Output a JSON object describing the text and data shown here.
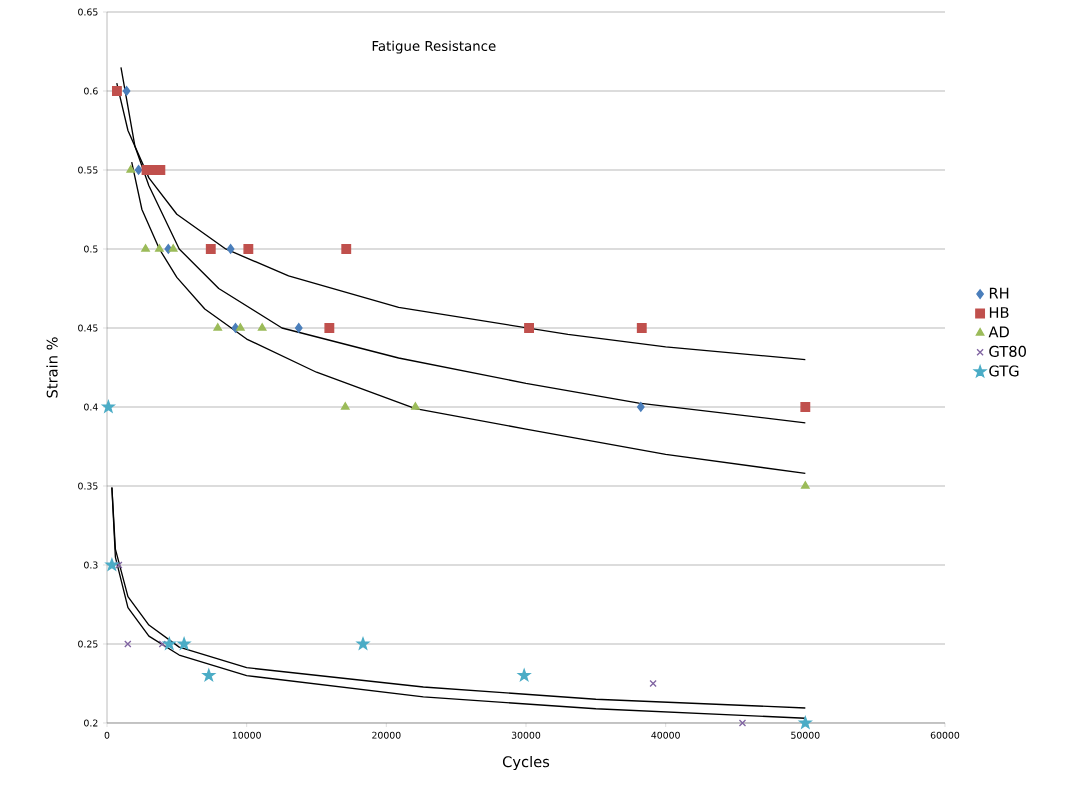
{
  "chart_data": {
    "type": "scatter",
    "title": "Fatigue Resistance",
    "xlabel": "Cycles",
    "ylabel": "Strain %",
    "xlim": [
      0,
      60000
    ],
    "ylim": [
      0.2,
      0.65
    ],
    "xticks": [
      0,
      10000,
      20000,
      30000,
      40000,
      50000,
      60000
    ],
    "yticks": [
      0.2,
      0.25,
      0.3,
      0.35,
      0.4,
      0.45,
      0.5,
      0.55,
      0.6,
      0.65
    ],
    "grid": "y",
    "legend": "right",
    "series": [
      {
        "name": "RH",
        "color": "#4a7ebb",
        "marker": "diamond",
        "x": [
          1400,
          2260,
          4390,
          8850,
          9200,
          13730,
          38220
        ],
        "values": [
          0.6,
          0.55,
          0.5,
          0.5,
          0.45,
          0.45,
          0.4
        ]
      },
      {
        "name": "HB",
        "color": "#c0504d",
        "marker": "square",
        "x": [
          710,
          2830,
          3330,
          3820,
          7430,
          10120,
          17130,
          15920,
          30220,
          38290,
          50000
        ],
        "values": [
          0.6,
          0.55,
          0.55,
          0.55,
          0.5,
          0.5,
          0.5,
          0.45,
          0.45,
          0.45,
          0.4
        ]
      },
      {
        "name": "AD",
        "color": "#9bbb59",
        "marker": "triangle",
        "x": [
          1700,
          2760,
          3750,
          4740,
          7930,
          9550,
          11110,
          17060,
          22080,
          50000
        ],
        "values": [
          0.55,
          0.5,
          0.5,
          0.5,
          0.45,
          0.45,
          0.45,
          0.4,
          0.4,
          0.35
        ]
      },
      {
        "name": "GT80",
        "color": "#8064a2",
        "marker": "cross",
        "x": [
          850,
          1490,
          3960,
          39100,
          45500
        ],
        "values": [
          0.3,
          0.25,
          0.25,
          0.225,
          0.2
        ]
      },
      {
        "name": "GTG",
        "color": "#4bacc6",
        "marker": "star",
        "x": [
          100,
          350,
          4460,
          5520,
          7290,
          18330,
          29870,
          50000
        ],
        "values": [
          0.4,
          0.3,
          0.25,
          0.25,
          0.23,
          0.25,
          0.23,
          0.2
        ]
      },
      {
        "type": "line",
        "color": "#000000",
        "marker": "none",
        "line_style": "solid",
        "x": [
          700,
          1500,
          3000,
          5000,
          8500,
          13000,
          20880,
          33000,
          40000,
          50000
        ],
        "values": [
          0.605,
          0.575,
          0.545,
          0.522,
          0.5,
          0.483,
          0.463,
          0.446,
          0.438,
          0.43
        ]
      },
      {
        "type": "line",
        "color": "#000000",
        "marker": "none",
        "line_style": "solid",
        "x": [
          1000,
          2000,
          3000,
          5170,
          8000,
          12530,
          20880,
          30000,
          38080,
          50000
        ],
        "values": [
          0.615,
          0.565,
          0.54,
          0.5,
          0.475,
          0.45,
          0.431,
          0.415,
          0.4025,
          0.39
        ]
      },
      {
        "type": "line",
        "color": "#000000",
        "marker": "none",
        "line_style": "solid",
        "x": [
          1770,
          2500,
          3750,
          5000,
          7000,
          10000,
          15000,
          22080,
          30000,
          40000,
          50000
        ],
        "values": [
          0.555,
          0.525,
          0.5,
          0.482,
          0.462,
          0.443,
          0.422,
          0.399,
          0.386,
          0.37,
          0.358
        ]
      },
      {
        "type": "line",
        "color": "#000000",
        "marker": "none",
        "line_style": "solid",
        "x": [
          350,
          600,
          1500,
          3000,
          5170,
          10000,
          22650,
          35000,
          50000
        ],
        "values": [
          0.349,
          0.31,
          0.28,
          0.262,
          0.248,
          0.235,
          0.2228,
          0.215,
          0.2095
        ]
      },
      {
        "type": "line",
        "color": "#000000",
        "marker": "none",
        "line_style": "solid",
        "x": [
          350,
          600,
          1500,
          3000,
          5170,
          10000,
          22650,
          35000,
          50000
        ],
        "values": [
          0.349,
          0.305,
          0.273,
          0.255,
          0.243,
          0.23,
          0.2165,
          0.209,
          0.203
        ]
      }
    ]
  }
}
